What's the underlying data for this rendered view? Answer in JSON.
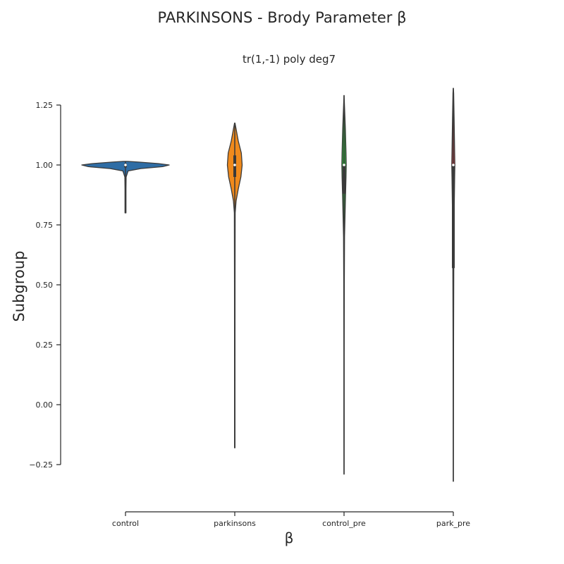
{
  "chart_data": {
    "type": "violin",
    "title": "PARKINSONS - Brody Parameter β",
    "subtitle": "tr(1,-1) poly deg7",
    "xlabel": "β",
    "ylabel": "Subgroup",
    "categories": [
      "control",
      "parkinsons",
      "control_pre",
      "park_pre"
    ],
    "yticks": [
      -0.25,
      0.0,
      0.25,
      0.5,
      0.75,
      1.0,
      1.25
    ],
    "ytick_labels": [
      "−0.25",
      "0.00",
      "0.25",
      "0.50",
      "0.75",
      "1.00",
      "1.25"
    ],
    "ylim": [
      -0.44,
      1.34
    ],
    "grid": false,
    "violins": [
      {
        "name": "control",
        "color": "#2f6da5",
        "min": 0.8,
        "max": 1.015,
        "median": 1.0,
        "q1": 0.99,
        "q3": 1.005,
        "profile": [
          [
            0.8,
            0.012
          ],
          [
            0.85,
            0.012
          ],
          [
            0.9,
            0.012
          ],
          [
            0.95,
            0.014
          ],
          [
            0.975,
            0.06
          ],
          [
            0.985,
            0.35
          ],
          [
            0.993,
            0.85
          ],
          [
            1.0,
            1.0
          ],
          [
            1.006,
            0.75
          ],
          [
            1.012,
            0.3
          ],
          [
            1.015,
            0.05
          ]
        ]
      },
      {
        "name": "parkinsons",
        "color": "#f08a1c",
        "min": -0.18,
        "max": 1.175,
        "median": 1.0,
        "q1": 0.95,
        "q3": 1.04,
        "profile": [
          [
            -0.18,
            0.005
          ],
          [
            0.0,
            0.005
          ],
          [
            0.5,
            0.006
          ],
          [
            0.8,
            0.01
          ],
          [
            0.85,
            0.03
          ],
          [
            0.9,
            0.08
          ],
          [
            0.95,
            0.14
          ],
          [
            1.0,
            0.17
          ],
          [
            1.05,
            0.15
          ],
          [
            1.1,
            0.08
          ],
          [
            1.15,
            0.03
          ],
          [
            1.175,
            0.005
          ]
        ]
      },
      {
        "name": "control_pre",
        "color": "#2f9a3a",
        "min": -0.29,
        "max": 1.29,
        "median": 1.0,
        "q1": 0.88,
        "q3": 1.0,
        "profile": [
          [
            -0.29,
            0.002
          ],
          [
            -0.1,
            0.003
          ],
          [
            0.2,
            0.004
          ],
          [
            0.5,
            0.006
          ],
          [
            0.7,
            0.012
          ],
          [
            0.85,
            0.03
          ],
          [
            0.95,
            0.045
          ],
          [
            1.0,
            0.05
          ],
          [
            1.05,
            0.045
          ],
          [
            1.15,
            0.03
          ],
          [
            1.25,
            0.01
          ],
          [
            1.29,
            0.002
          ]
        ]
      },
      {
        "name": "park_pre",
        "color": "#c53a3f",
        "min": -0.32,
        "max": 1.32,
        "median": 1.0,
        "q1": 0.57,
        "q3": 1.0,
        "profile": [
          [
            -0.32,
            0.002
          ],
          [
            0.0,
            0.004
          ],
          [
            0.3,
            0.006
          ],
          [
            0.6,
            0.012
          ],
          [
            0.8,
            0.02
          ],
          [
            0.95,
            0.03
          ],
          [
            1.0,
            0.035
          ],
          [
            1.05,
            0.03
          ],
          [
            1.2,
            0.018
          ],
          [
            1.3,
            0.008
          ],
          [
            1.32,
            0.002
          ]
        ]
      }
    ]
  }
}
